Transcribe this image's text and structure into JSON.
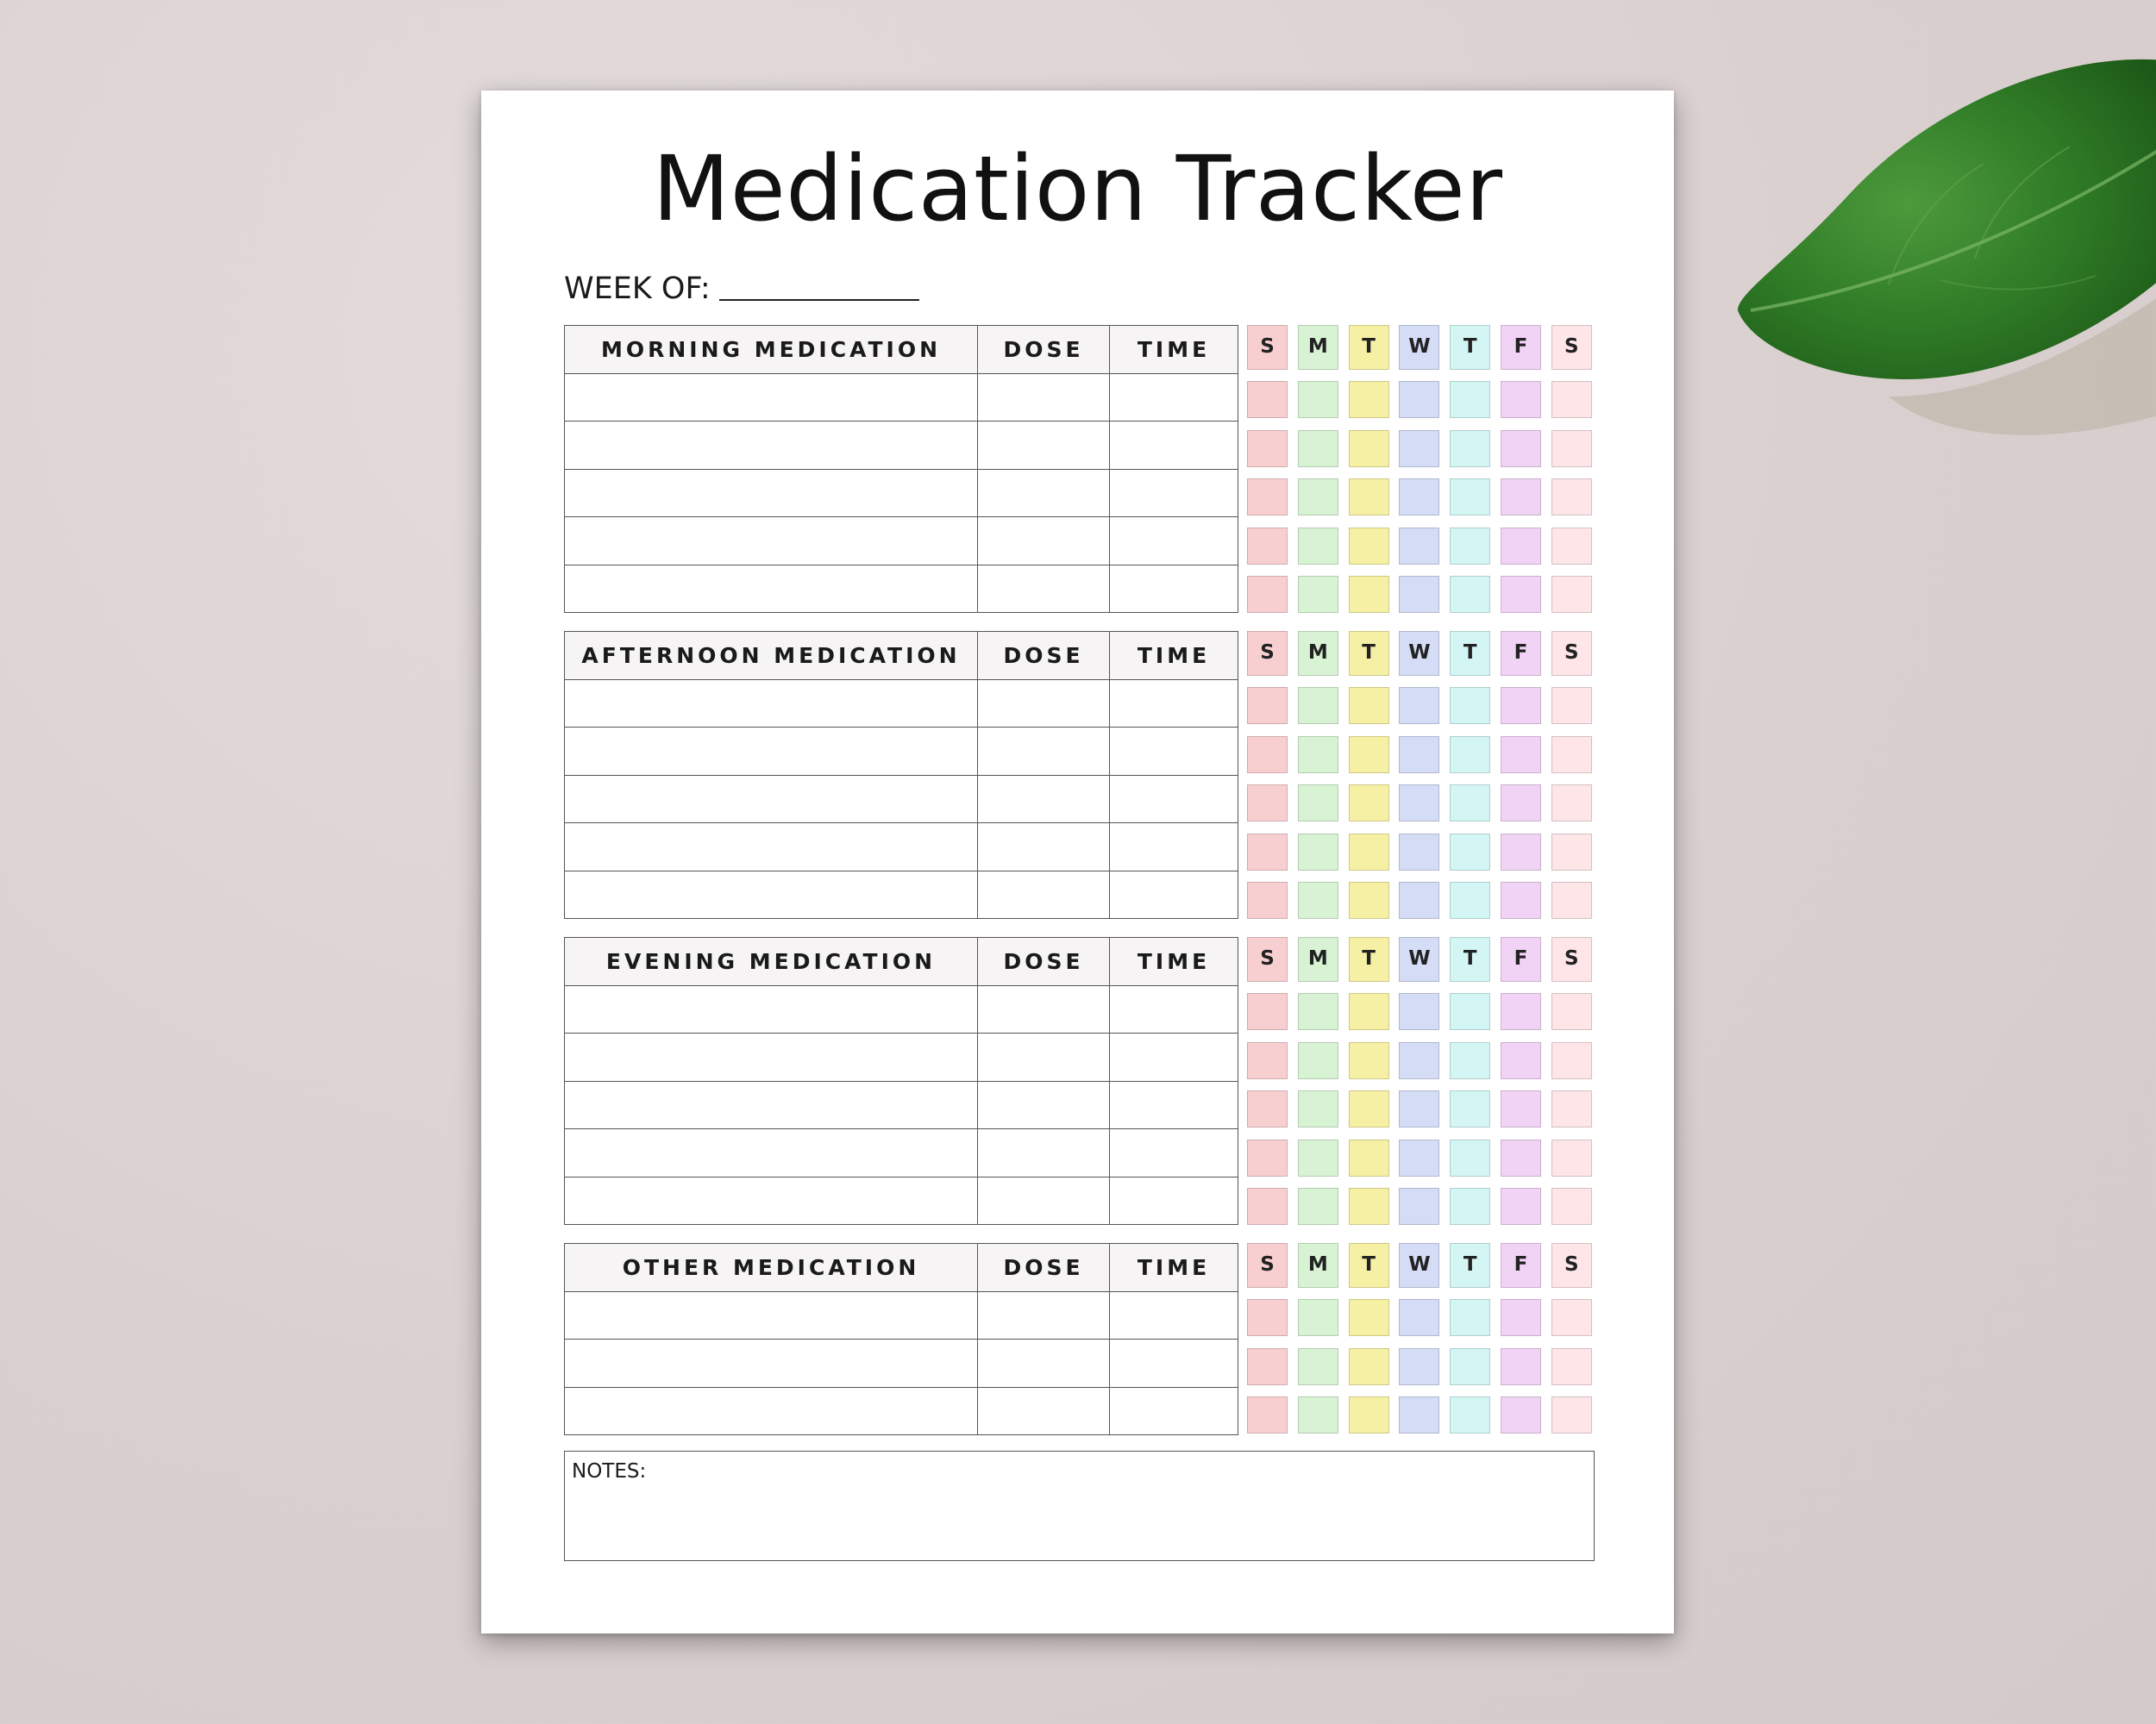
{
  "title": "Medication Tracker",
  "week_label": "WEEK OF:",
  "sections": [
    {
      "key": "morning",
      "title": "MORNING MEDICATION",
      "dose": "DOSE",
      "time": "TIME",
      "rows": 5
    },
    {
      "key": "afternoon",
      "title": "AFTERNOON MEDICATION",
      "dose": "DOSE",
      "time": "TIME",
      "rows": 5
    },
    {
      "key": "evening",
      "title": "EVENING MEDICATION",
      "dose": "DOSE",
      "time": "TIME",
      "rows": 5
    },
    {
      "key": "other",
      "title": "OTHER MEDICATION",
      "dose": "DOSE",
      "time": "TIME",
      "rows": 3
    }
  ],
  "days": [
    {
      "label": "S",
      "color": "#f7cfd1"
    },
    {
      "label": "M",
      "color": "#d8f3d4"
    },
    {
      "label": "T",
      "color": "#f6f0a4"
    },
    {
      "label": "W",
      "color": "#d4dcf6"
    },
    {
      "label": "T",
      "color": "#d3f6f4"
    },
    {
      "label": "F",
      "color": "#f1d3f5"
    },
    {
      "label": "S",
      "color": "#fde5e8"
    }
  ],
  "notes_label": "NOTES:"
}
